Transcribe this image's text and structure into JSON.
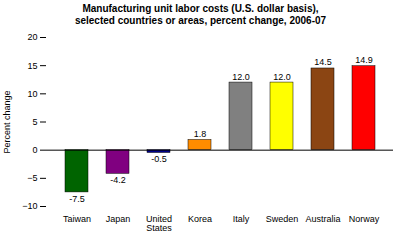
{
  "chart_data": {
    "type": "bar",
    "title": "Manufacturing unit labor costs (U.S. dollar basis),\nselected countries or areas, percent change, 2006-07",
    "categories": [
      "Taiwan",
      "Japan",
      "United\nStates",
      "Korea",
      "Italy",
      "Sweden",
      "Australia",
      "Norway"
    ],
    "values": [
      -7.5,
      -4.2,
      -0.5,
      1.8,
      12.0,
      12.0,
      14.5,
      14.9
    ],
    "value_labels": [
      "-7.5",
      "-4.2",
      "-0.5",
      "1.8",
      "12.0",
      "12.0",
      "14.5",
      "14.9"
    ],
    "colors": [
      "#006400",
      "#800080",
      "#00008B",
      "#FF8C00",
      "#808080",
      "#FFFF00",
      "#8B4513",
      "#FF0000"
    ],
    "ylabel": "Percent change",
    "ylim": [
      -10,
      20
    ],
    "yticks": [
      -10,
      -5,
      0,
      5,
      10,
      15,
      20
    ],
    "data_labels": true,
    "grid": false
  }
}
